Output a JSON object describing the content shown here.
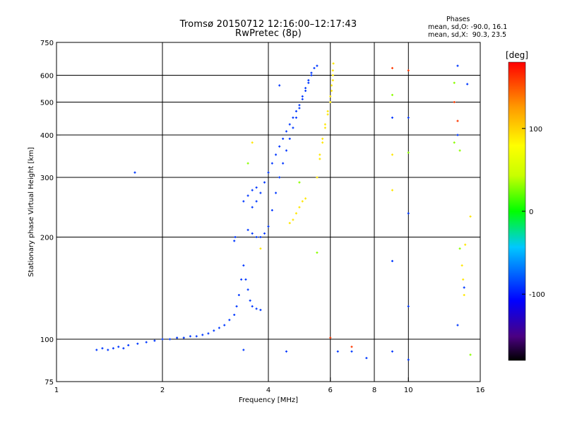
{
  "header": {
    "title": "Tromsø 20150712 12:16:00–12:17:43",
    "subtitle": "RwPretec (8p)"
  },
  "phase_stats": {
    "heading": "Phases",
    "line_o": "mean, sd,O: -90.0, 16.1",
    "line_x": "mean, sd,X:  90.3, 23.5"
  },
  "chart_data": {
    "type": "scatter",
    "xlabel": "Frequency [MHz]",
    "ylabel": "Stationary phase Virtual Height [km]",
    "xscale": "log",
    "yscale": "log",
    "xlim": [
      1,
      16
    ],
    "ylim": [
      75,
      750
    ],
    "xticks": [
      1,
      2,
      4,
      6,
      8,
      10,
      16
    ],
    "yticks": [
      75,
      100,
      200,
      300,
      400,
      500,
      600,
      750
    ],
    "grid": true,
    "colorbar": {
      "label": "[deg]",
      "range": [
        -180,
        180
      ],
      "ticks": [
        100,
        0,
        -100
      ]
    },
    "series": [
      {
        "mode": "O",
        "color_phase": -90,
        "points": [
          [
            1.3,
            93
          ],
          [
            1.35,
            94
          ],
          [
            1.4,
            93
          ],
          [
            1.45,
            94
          ],
          [
            1.5,
            95
          ],
          [
            1.55,
            94
          ],
          [
            1.6,
            96
          ],
          [
            1.7,
            97
          ],
          [
            1.8,
            98
          ],
          [
            1.9,
            99
          ],
          [
            2.0,
            100
          ],
          [
            2.1,
            100
          ],
          [
            2.2,
            101
          ],
          [
            2.3,
            101
          ],
          [
            2.4,
            102
          ],
          [
            2.5,
            102
          ],
          [
            2.6,
            103
          ],
          [
            2.7,
            104
          ],
          [
            2.8,
            106
          ],
          [
            2.9,
            108
          ],
          [
            3.0,
            110
          ],
          [
            3.1,
            114
          ],
          [
            3.2,
            118
          ],
          [
            3.25,
            125
          ],
          [
            3.3,
            135
          ],
          [
            3.35,
            150
          ],
          [
            3.4,
            165
          ],
          [
            3.45,
            150
          ],
          [
            3.5,
            140
          ],
          [
            3.55,
            130
          ],
          [
            3.6,
            125
          ],
          [
            3.7,
            123
          ],
          [
            3.8,
            122
          ],
          [
            3.2,
            195
          ],
          [
            3.22,
            200
          ],
          [
            3.5,
            210
          ],
          [
            3.6,
            205
          ],
          [
            3.7,
            200
          ],
          [
            3.8,
            200
          ],
          [
            3.9,
            205
          ],
          [
            4.0,
            215
          ],
          [
            4.1,
            240
          ],
          [
            4.2,
            270
          ],
          [
            4.3,
            300
          ],
          [
            4.4,
            330
          ],
          [
            4.5,
            360
          ],
          [
            4.6,
            390
          ],
          [
            4.7,
            420
          ],
          [
            4.8,
            450
          ],
          [
            4.9,
            480
          ],
          [
            5.0,
            510
          ],
          [
            5.1,
            540
          ],
          [
            5.2,
            570
          ],
          [
            5.3,
            600
          ],
          [
            5.4,
            630
          ],
          [
            5.5,
            640
          ],
          [
            3.6,
            245
          ],
          [
            3.7,
            255
          ],
          [
            3.8,
            270
          ],
          [
            3.9,
            290
          ],
          [
            4.0,
            310
          ],
          [
            4.1,
            330
          ],
          [
            4.2,
            350
          ],
          [
            4.3,
            370
          ],
          [
            4.4,
            390
          ],
          [
            4.5,
            410
          ],
          [
            4.6,
            430
          ],
          [
            4.7,
            450
          ],
          [
            4.8,
            470
          ],
          [
            4.9,
            490
          ],
          [
            5.0,
            520
          ],
          [
            5.1,
            550
          ],
          [
            5.2,
            580
          ],
          [
            5.3,
            610
          ],
          [
            3.4,
            255
          ],
          [
            3.5,
            265
          ],
          [
            3.6,
            275
          ],
          [
            3.7,
            280
          ],
          [
            4.3,
            560
          ],
          [
            3.4,
            93
          ],
          [
            4.5,
            92
          ],
          [
            6.3,
            92
          ],
          [
            6.9,
            92
          ],
          [
            7.6,
            88
          ],
          [
            9.0,
            92
          ],
          [
            10.0,
            87
          ],
          [
            10.0,
            235
          ],
          [
            9.0,
            170
          ],
          [
            10.0,
            125
          ],
          [
            13.8,
            110
          ],
          [
            13.8,
            400
          ],
          [
            13.8,
            640
          ],
          [
            9.0,
            450
          ],
          [
            10.0,
            450
          ],
          [
            14.7,
            565
          ],
          [
            14.4,
            142
          ],
          [
            1.67,
            310
          ]
        ]
      },
      {
        "mode": "X",
        "color_phase": 90,
        "points": [
          [
            4.6,
            220
          ],
          [
            4.7,
            225
          ],
          [
            4.8,
            235
          ],
          [
            4.9,
            245
          ],
          [
            5.0,
            255
          ],
          [
            5.1,
            260
          ],
          [
            5.5,
            300
          ],
          [
            5.6,
            340
          ],
          [
            5.7,
            380
          ],
          [
            5.8,
            420
          ],
          [
            5.9,
            460
          ],
          [
            6.0,
            500
          ],
          [
            6.05,
            540
          ],
          [
            6.1,
            580
          ],
          [
            6.1,
            620
          ],
          [
            6.12,
            650
          ],
          [
            5.6,
            350
          ],
          [
            5.7,
            390
          ],
          [
            5.8,
            430
          ],
          [
            5.9,
            470
          ],
          [
            6.0,
            520
          ],
          [
            6.05,
            560
          ],
          [
            6.1,
            600
          ],
          [
            9.0,
            350
          ],
          [
            9.0,
            275
          ],
          [
            14.2,
            165
          ],
          [
            14.3,
            150
          ],
          [
            14.4,
            135
          ],
          [
            15.0,
            230
          ],
          [
            14.5,
            190
          ],
          [
            3.6,
            380
          ],
          [
            3.8,
            185
          ]
        ]
      },
      {
        "mode": "other",
        "color_phase": 30,
        "points": [
          [
            3.5,
            330
          ],
          [
            4.9,
            290
          ],
          [
            5.5,
            180
          ],
          [
            14.0,
            185
          ],
          [
            13.5,
            380
          ],
          [
            14.0,
            360
          ],
          [
            9.0,
            525
          ],
          [
            10.0,
            355
          ],
          [
            13.5,
            570
          ],
          [
            15.0,
            90
          ]
        ]
      },
      {
        "mode": "outliers",
        "color_phase": 160,
        "points": [
          [
            9.0,
            630
          ],
          [
            10.0,
            620
          ],
          [
            13.5,
            500
          ],
          [
            13.8,
            440
          ],
          [
            6.0,
            101
          ],
          [
            6.9,
            95
          ]
        ]
      }
    ]
  }
}
